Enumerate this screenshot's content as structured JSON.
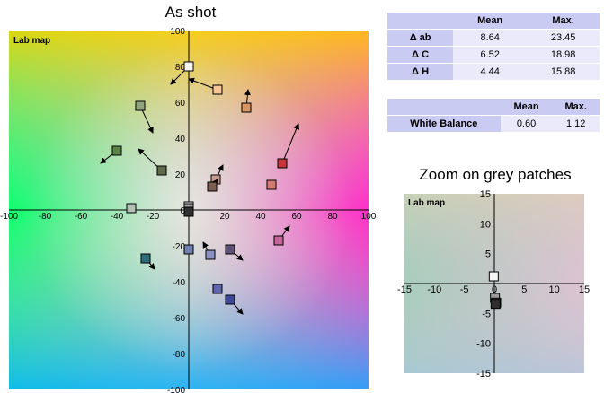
{
  "main_title": "As shot",
  "zoom_title": "Zoom on grey patches",
  "main_chart": {
    "label": "Lab map",
    "x_ticks": [
      "-100",
      "-80",
      "-60",
      "-40",
      "-20",
      "0",
      "20",
      "40",
      "60",
      "80",
      "100"
    ],
    "y_ticks": [
      "100",
      "80",
      "60",
      "40",
      "20",
      "0",
      "-20",
      "-40",
      "-60",
      "-80",
      "-100"
    ]
  },
  "zoom_chart": {
    "label": "Lab map",
    "x_ticks": [
      "-15",
      "-10",
      "-5",
      "0",
      "5",
      "10",
      "15"
    ],
    "y_ticks": [
      "15",
      "10",
      "5",
      "0",
      "-5",
      "-10",
      "-15"
    ]
  },
  "stats_table": {
    "headers": [
      "",
      "Mean",
      "Max."
    ],
    "rows": [
      {
        "label": "Δ ab",
        "mean": "8.64",
        "max": "23.45"
      },
      {
        "label": "Δ C",
        "mean": "6.52",
        "max": "18.98"
      },
      {
        "label": "Δ H",
        "mean": "4.44",
        "max": "15.88"
      }
    ]
  },
  "wb_table": {
    "headers": [
      "",
      "Mean",
      "Max."
    ],
    "rows": [
      {
        "label": "White Balance",
        "mean": "0.60",
        "max": "1.12"
      }
    ]
  },
  "chart_data": [
    {
      "type": "scatter",
      "title": "As shot",
      "label": "Lab map",
      "xlabel": "",
      "ylabel": "",
      "xlim": [
        -100,
        100
      ],
      "ylim": [
        -100,
        100
      ],
      "grid": false,
      "patches": [
        {
          "a": 0,
          "b": 80,
          "color": "#f3f3f3",
          "tx": -10,
          "ty": 70
        },
        {
          "a": 16,
          "b": 67,
          "color": "#f7c593",
          "tx": 0,
          "ty": 73
        },
        {
          "a": -27,
          "b": 58,
          "color": "#8fa37c",
          "tx": -20,
          "ty": 43
        },
        {
          "a": 32,
          "b": 57,
          "color": "#d9955f",
          "tx": 33,
          "ty": 67
        },
        {
          "a": -40,
          "b": 33,
          "color": "#5b8446",
          "tx": -49,
          "ty": 26
        },
        {
          "a": -15,
          "b": 22,
          "color": "#5e6b4d",
          "tx": -28,
          "ty": 34
        },
        {
          "a": 52,
          "b": 26,
          "color": "#c8343d",
          "tx": 61,
          "ty": 48
        },
        {
          "a": 15,
          "b": 17,
          "color": "#c79c8d",
          "tx": 19,
          "ty": 25
        },
        {
          "a": 13,
          "b": 13,
          "color": "#7b5d52",
          "tx": 16,
          "ty": 17
        },
        {
          "a": 46,
          "b": 14,
          "color": "#d37a71",
          "tx": 0,
          "ty": 0
        },
        {
          "a": 0,
          "b": 2,
          "color": "#f0f0f0",
          "tx": 0,
          "ty": 0
        },
        {
          "a": 0,
          "b": 1,
          "color": "#a0a0a0",
          "tx": 0,
          "ty": 0
        },
        {
          "a": 0,
          "b": -1,
          "color": "#303030",
          "tx": 0,
          "ty": 0
        },
        {
          "a": -32,
          "b": 1,
          "color": "#b4c1b6",
          "tx": 0,
          "ty": 0
        },
        {
          "a": 50,
          "b": -17,
          "color": "#c56297",
          "tx": 56,
          "ty": -9
        },
        {
          "a": 0,
          "b": -22,
          "color": "#6f7fae",
          "tx": 0,
          "ty": 0
        },
        {
          "a": 12,
          "b": -25,
          "color": "#8a8fc6",
          "tx": 8,
          "ty": -18
        },
        {
          "a": 23,
          "b": -22,
          "color": "#5f4f79",
          "tx": 30,
          "ty": -28
        },
        {
          "a": -24,
          "b": -27,
          "color": "#2f6f7d",
          "tx": -19,
          "ty": -33
        },
        {
          "a": 16,
          "b": -44,
          "color": "#5d64b0",
          "tx": 0,
          "ty": 0
        },
        {
          "a": 23,
          "b": -50,
          "color": "#3e4998",
          "tx": 30,
          "ty": -58
        }
      ]
    },
    {
      "type": "scatter",
      "title": "Zoom on grey patches",
      "label": "Lab map",
      "xlabel": "",
      "ylabel": "",
      "xlim": [
        -15,
        15
      ],
      "ylim": [
        -15,
        15
      ],
      "grid": false,
      "patches": [
        {
          "a": -0.1,
          "b": 1.2,
          "color": "#f6f6f6"
        },
        {
          "a": 0.1,
          "b": -2.4,
          "color": "#9a9a9a"
        },
        {
          "a": 0.3,
          "b": -3.2,
          "color": "#707070"
        },
        {
          "a": 0.2,
          "b": -3.4,
          "color": "#2e2e2e"
        }
      ]
    }
  ]
}
